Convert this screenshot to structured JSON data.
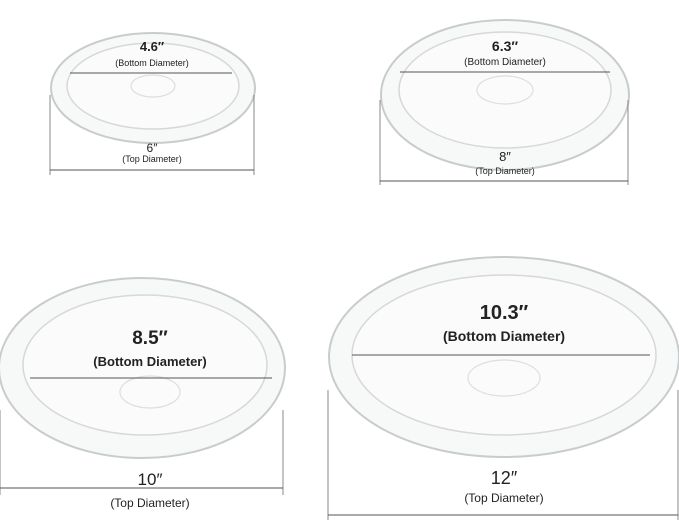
{
  "saucers": [
    {
      "bottom_value": "4.6″",
      "bottom_label": "(Bottom Diameter)",
      "top_value": "6″",
      "top_label": "(Top Diameter)"
    },
    {
      "bottom_value": "6.3″",
      "bottom_label": "(Bottom Diameter)",
      "top_value": "8″",
      "top_label": "(Top Diameter)"
    },
    {
      "bottom_value": "8.5″",
      "bottom_label": "(Bottom Diameter)",
      "top_value": "10″",
      "top_label": "(Top Diameter)"
    },
    {
      "bottom_value": "10.3″",
      "bottom_label": "(Bottom Diameter)",
      "top_value": "12″",
      "top_label": "(Top Diameter)"
    }
  ]
}
